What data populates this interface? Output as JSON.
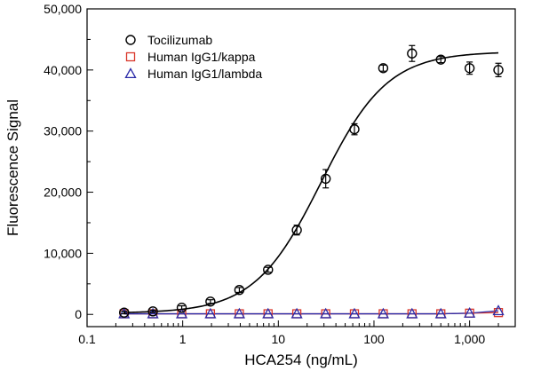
{
  "chart_data": {
    "type": "scatter",
    "xlabel": "HCA254 (ng/mL)",
    "ylabel": "Fluorescence Signal",
    "x_scale": "log",
    "xlim": [
      0.1,
      3000
    ],
    "ylim": [
      -2000,
      50000
    ],
    "x_ticks": [
      0.1,
      1,
      10,
      100,
      1000
    ],
    "x_tick_labels": [
      "0.1",
      "1",
      "10",
      "100",
      "1,000"
    ],
    "y_ticks": [
      0,
      10000,
      20000,
      30000,
      40000,
      50000
    ],
    "y_tick_labels": [
      "0",
      "10,000",
      "20,000",
      "30,000",
      "40,000",
      "50,000"
    ],
    "legend_position": "top-left",
    "grid": false,
    "series": [
      {
        "name": "Tocilizumab",
        "marker": "circle",
        "color": "#000000",
        "x": [
          0.244,
          0.488,
          0.977,
          1.95,
          3.91,
          7.81,
          15.6,
          31.3,
          62.5,
          125,
          250,
          500,
          1000,
          2000
        ],
        "y": [
          300,
          500,
          1100,
          2100,
          4000,
          7300,
          13800,
          22200,
          30300,
          40300,
          42700,
          41700,
          40300,
          40000
        ],
        "error": [
          200,
          200,
          300,
          300,
          400,
          400,
          800,
          1500,
          900,
          500,
          1300,
          500,
          1000,
          1100
        ],
        "fit_curve": {
          "bottom": 200,
          "top": 43000,
          "ec50": 28,
          "hill": 1.25,
          "color": "#000000"
        }
      },
      {
        "name": "Human IgG1/kappa",
        "marker": "square",
        "color": "#d9372b",
        "x": [
          0.244,
          0.488,
          0.977,
          1.95,
          3.91,
          7.81,
          15.6,
          31.3,
          62.5,
          125,
          250,
          500,
          1000,
          2000
        ],
        "y": [
          100,
          100,
          100,
          100,
          100,
          100,
          100,
          100,
          100,
          100,
          100,
          100,
          200,
          300
        ]
      },
      {
        "name": "Human IgG1/lambda",
        "marker": "triangle",
        "color": "#2b2ba8",
        "x": [
          0.244,
          0.488,
          0.977,
          1.95,
          3.91,
          7.81,
          15.6,
          31.3,
          62.5,
          125,
          250,
          500,
          1000,
          2000
        ],
        "y": [
          100,
          100,
          100,
          100,
          100,
          100,
          100,
          100,
          100,
          100,
          100,
          100,
          200,
          600
        ]
      }
    ]
  }
}
